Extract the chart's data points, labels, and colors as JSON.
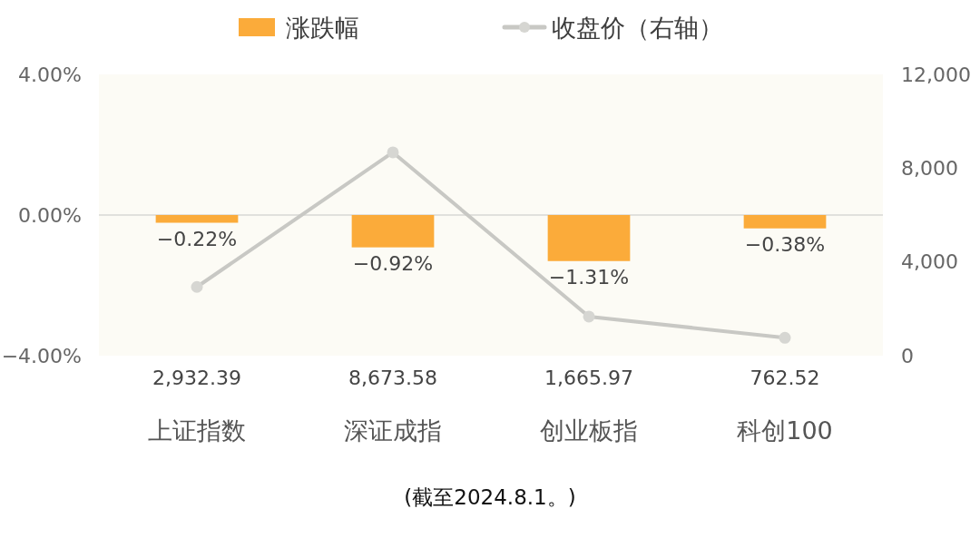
{
  "chart_data": {
    "type": "bar",
    "categories": [
      "上证指数",
      "深证成指",
      "创业板指",
      "科创100"
    ],
    "series": [
      {
        "name": "涨跌幅",
        "color": "#fbab3a",
        "values": [
          -0.22,
          -0.92,
          -1.31,
          -0.38
        ],
        "value_labels": [
          "−0.22%",
          "−0.92%",
          "−1.31%",
          "−0.38%"
        ]
      },
      {
        "name": "收盘价（右轴）",
        "type": "line",
        "axis": "y2",
        "color": "#c8c8c4",
        "marker": "circle",
        "values": [
          2932.39,
          8673.58,
          1665.97,
          762.52
        ],
        "value_labels": [
          "2,932.39",
          "8,673.58",
          "1,665.97",
          "762.52"
        ]
      }
    ],
    "ylim": [
      -4,
      4
    ],
    "yticks": [
      {
        "value": -4,
        "label": "−4.00%"
      },
      {
        "value": 0,
        "label": "0.00%"
      },
      {
        "value": 4,
        "label": "4.00%"
      }
    ],
    "y2lim": [
      0,
      12000
    ],
    "y2ticks": [
      0,
      {
        "value": 4000,
        "label": "4,000"
      },
      {
        "value": 8000,
        "label": "8,000"
      },
      {
        "value": 12000,
        "label": "12,000"
      }
    ],
    "ref_lines": [
      {
        "axis": "y",
        "value": 0,
        "color": "#d9d9d5"
      }
    ],
    "legend": "top",
    "grid": false,
    "annotations": [
      "(截至2024.8.1。)"
    ]
  }
}
